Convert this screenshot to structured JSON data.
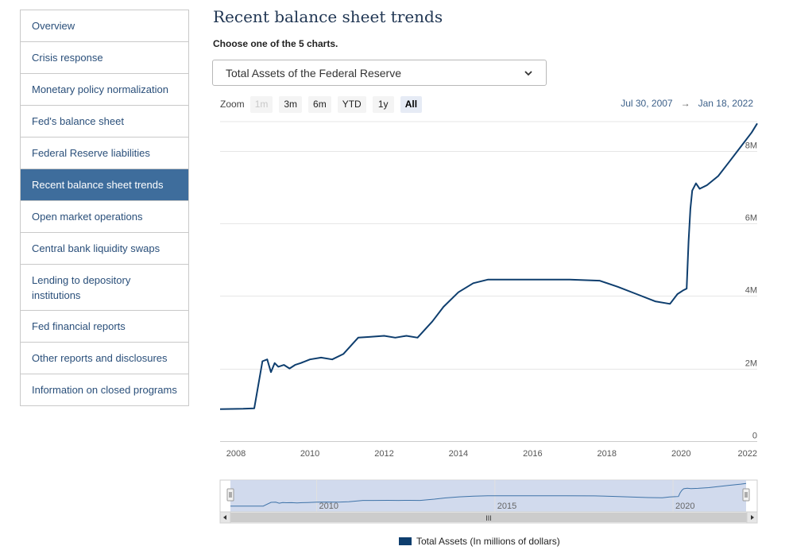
{
  "sidebar": {
    "items": [
      {
        "label": "Overview"
      },
      {
        "label": "Crisis response"
      },
      {
        "label": "Monetary policy normalization"
      },
      {
        "label": "Fed's balance sheet"
      },
      {
        "label": "Federal Reserve liabilities"
      },
      {
        "label": "Recent balance sheet trends",
        "active": true
      },
      {
        "label": "Open market operations"
      },
      {
        "label": "Central bank liquidity swaps"
      },
      {
        "label": "Lending to depository institutions"
      },
      {
        "label": "Fed financial reports"
      },
      {
        "label": "Other reports and disclosures"
      },
      {
        "label": "Information on closed programs"
      }
    ]
  },
  "main": {
    "title": "Recent balance sheet trends",
    "choose_label": "Choose one of the 5 charts.",
    "select_value": "Total Assets of the Federal Reserve"
  },
  "zoom": {
    "label": "Zoom",
    "buttons": [
      "1m",
      "3m",
      "6m",
      "YTD",
      "1y",
      "All"
    ],
    "disabled": "1m",
    "selected": "All"
  },
  "range": {
    "from": "Jul 30, 2007",
    "arrow": "→",
    "to": "Jan 18, 2022"
  },
  "colors": {
    "series": "#0e3e6e",
    "active_nav": "#3e6d9c",
    "navigator_fill": "#c9d3ea"
  },
  "legend_label": "Total Assets (In millions of dollars)",
  "chart_data": {
    "type": "line",
    "series": [
      {
        "name": "Total Assets (In millions of dollars)",
        "x": [
          2007.58,
          2008.2,
          2008.5,
          2008.72,
          2008.85,
          2008.95,
          2009.05,
          2009.15,
          2009.3,
          2009.45,
          2009.6,
          2009.75,
          2010.0,
          2010.3,
          2010.6,
          2010.9,
          2011.3,
          2011.6,
          2012.0,
          2012.3,
          2012.6,
          2012.9,
          2013.3,
          2013.6,
          2014.0,
          2014.4,
          2014.8,
          2015.3,
          2016.0,
          2017.0,
          2017.8,
          2018.3,
          2018.8,
          2019.3,
          2019.7,
          2019.9,
          2020.05,
          2020.15,
          2020.2,
          2020.25,
          2020.3,
          2020.4,
          2020.5,
          2020.7,
          2021.0,
          2021.3,
          2021.6,
          2021.9,
          2022.05
        ],
        "values": [
          880,
          890,
          905,
          2200,
          2250,
          1900,
          2150,
          2050,
          2100,
          2000,
          2100,
          2150,
          2250,
          2300,
          2250,
          2400,
          2850,
          2870,
          2900,
          2850,
          2900,
          2850,
          3300,
          3700,
          4100,
          4350,
          4450,
          4450,
          4450,
          4450,
          4420,
          4250,
          4050,
          3850,
          3780,
          4050,
          4150,
          4200,
          5500,
          6400,
          6900,
          7100,
          6950,
          7050,
          7300,
          7700,
          8100,
          8500,
          8750
        ]
      }
    ],
    "xlim": [
      2007.58,
      2022.05
    ],
    "ylim": [
      0,
      8800
    ],
    "y_ticks": [
      0,
      2000,
      4000,
      6000,
      8000
    ],
    "y_tick_labels": [
      "0",
      "2M",
      "4M",
      "6M",
      "8M"
    ],
    "x_ticks": [
      2008,
      2010,
      2012,
      2014,
      2016,
      2018,
      2020,
      2022
    ],
    "x_tick_labels": [
      "2008",
      "2010",
      "2012",
      "2014",
      "2016",
      "2018",
      "2020",
      "2022"
    ],
    "navigator_ticks": [
      2010,
      2015,
      2020
    ],
    "navigator_tick_labels": [
      "2010",
      "2015",
      "2020"
    ],
    "grid": true,
    "legend_position": "bottom-center",
    "scrollbar_grip": "III"
  }
}
